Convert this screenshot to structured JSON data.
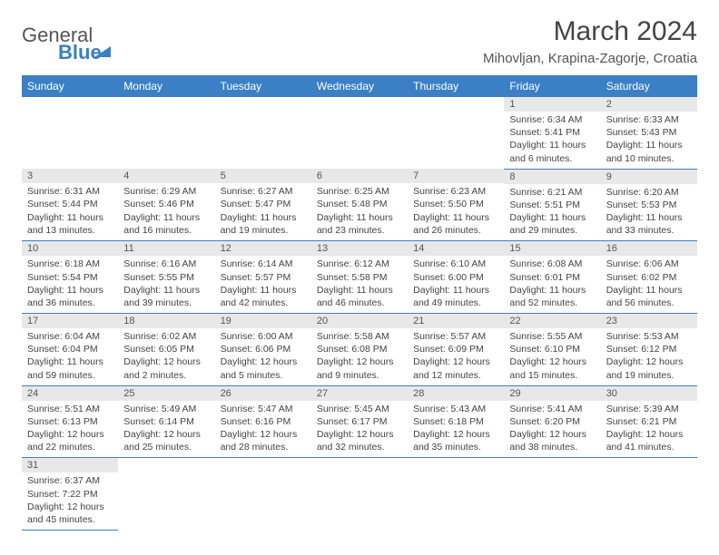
{
  "brand": {
    "name1": "General",
    "name2": "Blue"
  },
  "title": "March 2024",
  "location": "Mihovljan, Krapina-Zagorje, Croatia",
  "columns": [
    "Sunday",
    "Monday",
    "Tuesday",
    "Wednesday",
    "Thursday",
    "Friday",
    "Saturday"
  ],
  "colors": {
    "header_bg": "#3b7fc4",
    "header_text": "#ffffff",
    "daynum_bg": "#e8e8e8",
    "border": "#3b7fc4",
    "text": "#444444"
  },
  "weeks": [
    [
      null,
      null,
      null,
      null,
      null,
      {
        "n": "1",
        "sr": "6:34 AM",
        "ss": "5:41 PM",
        "dl": "11 hours and 6 minutes."
      },
      {
        "n": "2",
        "sr": "6:33 AM",
        "ss": "5:43 PM",
        "dl": "11 hours and 10 minutes."
      }
    ],
    [
      {
        "n": "3",
        "sr": "6:31 AM",
        "ss": "5:44 PM",
        "dl": "11 hours and 13 minutes."
      },
      {
        "n": "4",
        "sr": "6:29 AM",
        "ss": "5:46 PM",
        "dl": "11 hours and 16 minutes."
      },
      {
        "n": "5",
        "sr": "6:27 AM",
        "ss": "5:47 PM",
        "dl": "11 hours and 19 minutes."
      },
      {
        "n": "6",
        "sr": "6:25 AM",
        "ss": "5:48 PM",
        "dl": "11 hours and 23 minutes."
      },
      {
        "n": "7",
        "sr": "6:23 AM",
        "ss": "5:50 PM",
        "dl": "11 hours and 26 minutes."
      },
      {
        "n": "8",
        "sr": "6:21 AM",
        "ss": "5:51 PM",
        "dl": "11 hours and 29 minutes."
      },
      {
        "n": "9",
        "sr": "6:20 AM",
        "ss": "5:53 PM",
        "dl": "11 hours and 33 minutes."
      }
    ],
    [
      {
        "n": "10",
        "sr": "6:18 AM",
        "ss": "5:54 PM",
        "dl": "11 hours and 36 minutes."
      },
      {
        "n": "11",
        "sr": "6:16 AM",
        "ss": "5:55 PM",
        "dl": "11 hours and 39 minutes."
      },
      {
        "n": "12",
        "sr": "6:14 AM",
        "ss": "5:57 PM",
        "dl": "11 hours and 42 minutes."
      },
      {
        "n": "13",
        "sr": "6:12 AM",
        "ss": "5:58 PM",
        "dl": "11 hours and 46 minutes."
      },
      {
        "n": "14",
        "sr": "6:10 AM",
        "ss": "6:00 PM",
        "dl": "11 hours and 49 minutes."
      },
      {
        "n": "15",
        "sr": "6:08 AM",
        "ss": "6:01 PM",
        "dl": "11 hours and 52 minutes."
      },
      {
        "n": "16",
        "sr": "6:06 AM",
        "ss": "6:02 PM",
        "dl": "11 hours and 56 minutes."
      }
    ],
    [
      {
        "n": "17",
        "sr": "6:04 AM",
        "ss": "6:04 PM",
        "dl": "11 hours and 59 minutes."
      },
      {
        "n": "18",
        "sr": "6:02 AM",
        "ss": "6:05 PM",
        "dl": "12 hours and 2 minutes."
      },
      {
        "n": "19",
        "sr": "6:00 AM",
        "ss": "6:06 PM",
        "dl": "12 hours and 5 minutes."
      },
      {
        "n": "20",
        "sr": "5:58 AM",
        "ss": "6:08 PM",
        "dl": "12 hours and 9 minutes."
      },
      {
        "n": "21",
        "sr": "5:57 AM",
        "ss": "6:09 PM",
        "dl": "12 hours and 12 minutes."
      },
      {
        "n": "22",
        "sr": "5:55 AM",
        "ss": "6:10 PM",
        "dl": "12 hours and 15 minutes."
      },
      {
        "n": "23",
        "sr": "5:53 AM",
        "ss": "6:12 PM",
        "dl": "12 hours and 19 minutes."
      }
    ],
    [
      {
        "n": "24",
        "sr": "5:51 AM",
        "ss": "6:13 PM",
        "dl": "12 hours and 22 minutes."
      },
      {
        "n": "25",
        "sr": "5:49 AM",
        "ss": "6:14 PM",
        "dl": "12 hours and 25 minutes."
      },
      {
        "n": "26",
        "sr": "5:47 AM",
        "ss": "6:16 PM",
        "dl": "12 hours and 28 minutes."
      },
      {
        "n": "27",
        "sr": "5:45 AM",
        "ss": "6:17 PM",
        "dl": "12 hours and 32 minutes."
      },
      {
        "n": "28",
        "sr": "5:43 AM",
        "ss": "6:18 PM",
        "dl": "12 hours and 35 minutes."
      },
      {
        "n": "29",
        "sr": "5:41 AM",
        "ss": "6:20 PM",
        "dl": "12 hours and 38 minutes."
      },
      {
        "n": "30",
        "sr": "5:39 AM",
        "ss": "6:21 PM",
        "dl": "12 hours and 41 minutes."
      }
    ],
    [
      {
        "n": "31",
        "sr": "6:37 AM",
        "ss": "7:22 PM",
        "dl": "12 hours and 45 minutes."
      },
      null,
      null,
      null,
      null,
      null,
      null
    ]
  ],
  "labels": {
    "sunrise": "Sunrise:",
    "sunset": "Sunset:",
    "daylight": "Daylight:"
  }
}
